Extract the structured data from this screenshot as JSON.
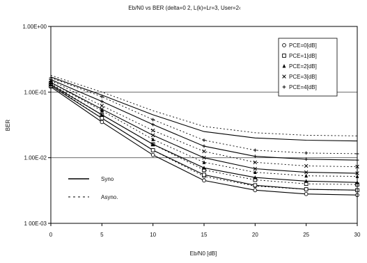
{
  "chart_data": {
    "type": "line",
    "title": "Eb/N0 vs BER (delta=0 2, L(k)=Lr=3, User=2‹",
    "xlabel": "Eb/N0 [dB]",
    "ylabel": "BER",
    "x": [
      0,
      5,
      10,
      15,
      20,
      25,
      30
    ],
    "x_ticks": [
      "0",
      "5",
      "10",
      "15",
      "20",
      "25",
      "30"
    ],
    "y_ticks": [
      "1.00E+00",
      "1.00E-01",
      "1.00E-02",
      "1 00E-03"
    ],
    "ylim": [
      0.001,
      1
    ],
    "xlim": [
      0,
      30
    ],
    "y_scale": "log",
    "grid": "horizontal",
    "legend_placement": "top-right",
    "line_styles_legend": {
      "placement": "bottom-left",
      "items": [
        {
          "label": "Syno",
          "style": "solid"
        },
        {
          "label": "Asyno.",
          "style": "dashed"
        }
      ]
    },
    "series": [
      {
        "name": "PCE=0[dB]",
        "marker": "circle",
        "sync": [
          0.12,
          0.035,
          0.011,
          0.0045,
          0.0032,
          0.0028,
          0.0027
        ],
        "async": [
          0.13,
          0.04,
          0.013,
          0.0052,
          0.0037,
          0.0033,
          0.0032
        ]
      },
      {
        "name": "PCE=1[dB]",
        "marker": "square",
        "sync": [
          0.125,
          0.04,
          0.013,
          0.0055,
          0.0038,
          0.0033,
          0.0032
        ],
        "async": [
          0.135,
          0.045,
          0.016,
          0.0065,
          0.0046,
          0.004,
          0.0039
        ]
      },
      {
        "name": "PCE=2[dB]",
        "marker": "triangle",
        "sync": [
          0.13,
          0.045,
          0.016,
          0.007,
          0.005,
          0.0044,
          0.0042
        ],
        "async": [
          0.14,
          0.052,
          0.019,
          0.0085,
          0.006,
          0.0053,
          0.0052
        ]
      },
      {
        "name": "PCE=3[dB]",
        "marker": "x",
        "sync": [
          0.14,
          0.055,
          0.022,
          0.01,
          0.0068,
          0.006,
          0.0058
        ],
        "async": [
          0.15,
          0.062,
          0.026,
          0.0125,
          0.0085,
          0.0075,
          0.0073
        ]
      },
      {
        "name": "PCE=4[dB]",
        "marker": "plus",
        "sync": [
          0.155,
          0.072,
          0.032,
          0.015,
          0.0105,
          0.0095,
          0.0092
        ],
        "async": [
          0.165,
          0.085,
          0.038,
          0.0185,
          0.013,
          0.0118,
          0.0115
        ]
      },
      {
        "name": "",
        "marker": "none",
        "sync": [
          0.17,
          0.09,
          0.045,
          0.025,
          0.02,
          0.0185,
          0.018
        ],
        "async": [
          0.18,
          0.1,
          0.052,
          0.03,
          0.024,
          0.022,
          0.0215
        ]
      }
    ]
  }
}
